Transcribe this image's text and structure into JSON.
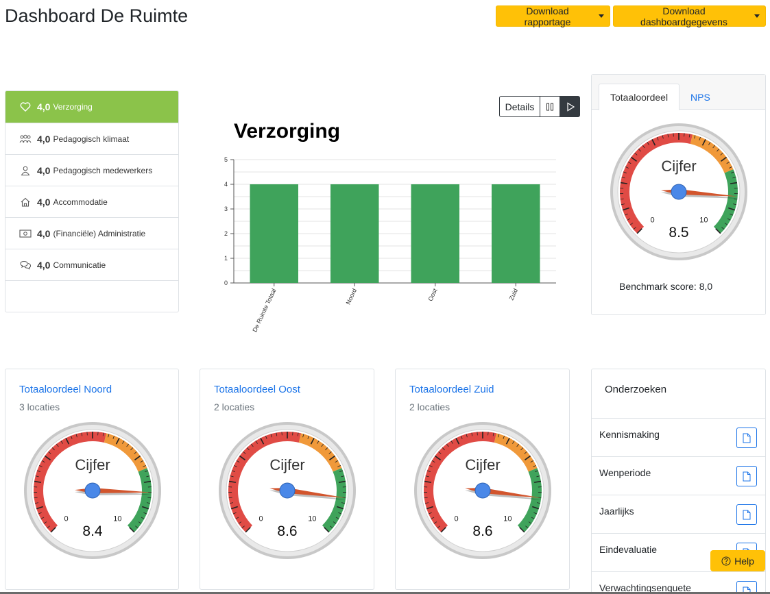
{
  "header": {
    "title": "Dashboard De Ruimte",
    "download_report": "Download rapportage",
    "download_data": "Download dashboardgegevens"
  },
  "sidebar": {
    "items": [
      {
        "score": "4,0",
        "label": "Verzorging",
        "icon": "heart-icon",
        "active": true
      },
      {
        "score": "4,0",
        "label": "Pedagogisch klimaat",
        "icon": "group-icon",
        "active": false
      },
      {
        "score": "4,0",
        "label": "Pedagogisch medewerkers",
        "icon": "user-icon",
        "active": false
      },
      {
        "score": "4,0",
        "label": "Accommodatie",
        "icon": "house-icon",
        "active": false
      },
      {
        "score": "4,0",
        "label": "(Financiële) Administratie",
        "icon": "money-icon",
        "active": false
      },
      {
        "score": "4,0",
        "label": "Communicatie",
        "icon": "chat-icon",
        "active": false
      }
    ]
  },
  "controls": {
    "details": "Details",
    "pause_icon": "pause-icon",
    "play_icon": "play-icon"
  },
  "chart_data": {
    "type": "bar",
    "title": "Verzorging",
    "categories": [
      "De Ruimte Totaal",
      "Noord",
      "Oost",
      "Zuid"
    ],
    "values": [
      4,
      4,
      4,
      4
    ],
    "ylim": [
      0,
      5
    ],
    "yticks": [
      0,
      1,
      2,
      3,
      4,
      5
    ],
    "bar_color": "#3fa35b",
    "grid": true,
    "xlabel": "",
    "ylabel": ""
  },
  "main_gauge": {
    "tabs": [
      "Totaaloordeel",
      "NPS"
    ],
    "active_tab": "Totaaloordeel",
    "label": "Cijfer",
    "value": 8.5,
    "value_text": "8.5",
    "min_label": "0",
    "max_label": "10",
    "benchmark": "Benchmark score: 8,0"
  },
  "locations": [
    {
      "title": "Totaaloordeel Noord",
      "sub": "3 locaties",
      "label": "Cijfer",
      "value": 8.4,
      "value_text": "8.4",
      "min_label": "0",
      "max_label": "10"
    },
    {
      "title": "Totaaloordeel Oost",
      "sub": "2 locaties",
      "label": "Cijfer",
      "value": 8.6,
      "value_text": "8.6",
      "min_label": "0",
      "max_label": "10"
    },
    {
      "title": "Totaaloordeel Zuid",
      "sub": "2 locaties",
      "label": "Cijfer",
      "value": 8.6,
      "value_text": "8.6",
      "min_label": "0",
      "max_label": "10"
    }
  ],
  "research": {
    "title": "Onderzoeken",
    "items": [
      "Kennismaking",
      "Wenperiode",
      "Jaarlijks",
      "Eindevaluatie",
      "Verwachtingsenquete"
    ]
  },
  "help": {
    "label": "Help",
    "icon": "question-circle-icon"
  },
  "colors": {
    "accent_yellow": "#ffc107",
    "active_green": "#8bc34a",
    "link_blue": "#1a73e8",
    "gauge_red": "#e04b45",
    "gauge_orange": "#f0993a",
    "gauge_green": "#3fa35b"
  }
}
